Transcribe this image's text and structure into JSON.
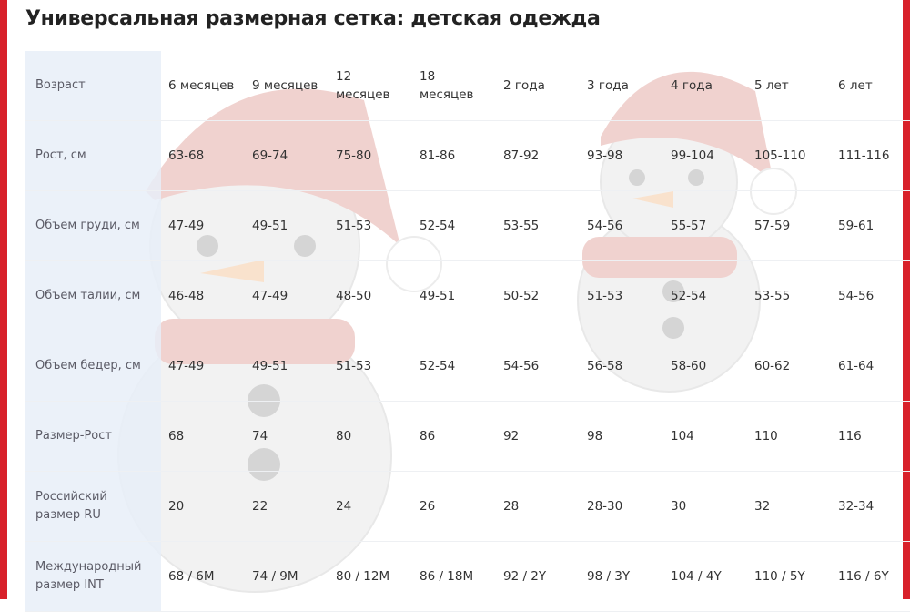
{
  "header": {
    "title": "Универсальная размерная сетка: детская одежда"
  },
  "table": {
    "rows": [
      [
        "Возраст",
        "6 месяцев",
        "9 месяцев",
        "12 месяцев",
        "18 месяцев",
        "2 года",
        "3 года",
        "4 года",
        "5 лет",
        "6 лет"
      ],
      [
        "Рост, см",
        "63-68",
        "69-74",
        "75-80",
        "81-86",
        "87-92",
        "93-98",
        "99-104",
        "105-110",
        "111-116"
      ],
      [
        "Объем груди, см",
        "47-49",
        "49-51",
        "51-53",
        "52-54",
        "53-55",
        "54-56",
        "55-57",
        "57-59",
        "59-61"
      ],
      [
        "Объем талии, см",
        "46-48",
        "47-49",
        "48-50",
        "49-51",
        "50-52",
        "51-53",
        "52-54",
        "53-55",
        "54-56"
      ],
      [
        "Объем бедер, см",
        "47-49",
        "49-51",
        "51-53",
        "52-54",
        "54-56",
        "56-58",
        "58-60",
        "60-62",
        "61-64"
      ],
      [
        "Размер-Рост",
        "68",
        "74",
        "80",
        "86",
        "92",
        "98",
        "104",
        "110",
        "116"
      ],
      [
        "Российский размер RU",
        "20",
        "22",
        "24",
        "26",
        "28",
        "28-30",
        "30",
        "32",
        "32-34"
      ],
      [
        "Международный размер INT",
        "68 / 6M",
        "74 / 9M",
        "80 / 12M",
        "86 / 18M",
        "92 / 2Y",
        "98 / 3Y",
        "104 / 4Y",
        "110 / 5Y",
        "116 / 6Y"
      ]
    ]
  }
}
